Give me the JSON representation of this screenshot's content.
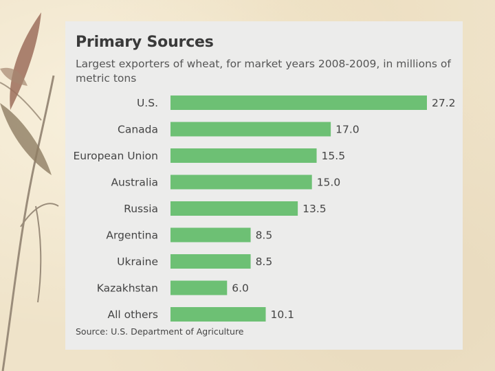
{
  "colors": {
    "bar": "#6dc074",
    "card": "#ececeb",
    "background": "#efe3c9"
  },
  "chart_data": {
    "type": "bar",
    "orientation": "horizontal",
    "title": "Primary Sources",
    "subtitle": "Largest exporters of wheat, for market years 2008-2009, in millions of metric tons",
    "categories": [
      "U.S.",
      "Canada",
      "European Union",
      "Australia",
      "Russia",
      "Argentina",
      "Ukraine",
      "Kazakhstan",
      "All others"
    ],
    "values": [
      27.2,
      17.0,
      15.5,
      15.0,
      13.5,
      8.5,
      8.5,
      6.0,
      10.1
    ],
    "value_labels": [
      "27.2",
      "17.0",
      "15.5",
      "15.0",
      "13.5",
      "8.5",
      "8.5",
      "6.0",
      "10.1"
    ],
    "xlim": [
      0,
      27.2
    ],
    "grid": false,
    "source": "Source: U.S. Department of Agriculture"
  }
}
